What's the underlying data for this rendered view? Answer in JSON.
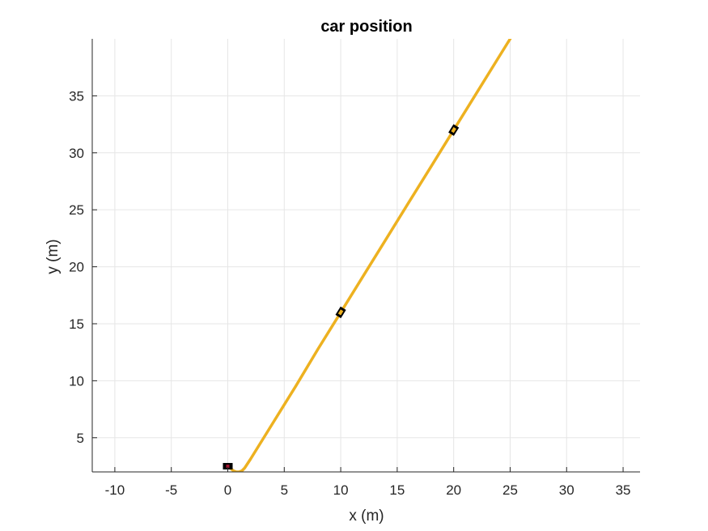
{
  "chart_data": {
    "type": "line",
    "title": "car position",
    "xlabel": "x (m)",
    "ylabel": "y (m)",
    "xlim": [
      -12,
      36.5
    ],
    "ylim": [
      2,
      40
    ],
    "xticks": [
      -10,
      -5,
      0,
      5,
      10,
      15,
      20,
      25,
      30,
      35
    ],
    "yticks": [
      5,
      10,
      15,
      20,
      25,
      30,
      35
    ],
    "grid": true,
    "colors": {
      "path": "#EDB120",
      "marker": "#000000",
      "start_marker": "#A2142F",
      "grid": "#E6E6E6",
      "axis": "#262626"
    },
    "series": [
      {
        "x": [
          0,
          0.25,
          0.5,
          0.75,
          1.0,
          1.25,
          1.5,
          2,
          4,
          6,
          8,
          10,
          12,
          14,
          16,
          18,
          20,
          22,
          24,
          25
        ],
        "y": [
          2.5,
          2.3,
          2.1,
          2.0,
          2.0,
          2.1,
          2.35,
          3.1,
          6.3,
          9.5,
          12.8,
          16,
          19.2,
          22.4,
          25.6,
          28.8,
          32,
          35.2,
          38.4,
          40
        ]
      }
    ],
    "markers": [
      {
        "x": 0,
        "y": 2.5,
        "heading_deg": 0,
        "start": true
      },
      {
        "x": 10,
        "y": 16,
        "heading_deg": 58
      },
      {
        "x": 20,
        "y": 32,
        "heading_deg": 58
      }
    ]
  }
}
